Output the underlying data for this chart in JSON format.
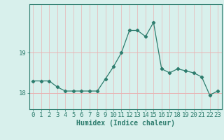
{
  "x": [
    0,
    1,
    2,
    3,
    4,
    5,
    6,
    7,
    8,
    9,
    10,
    11,
    12,
    13,
    14,
    15,
    16,
    17,
    18,
    19,
    20,
    21,
    22,
    23
  ],
  "y": [
    18.3,
    18.3,
    18.3,
    18.15,
    18.05,
    18.05,
    18.05,
    18.05,
    18.05,
    18.35,
    18.65,
    19.0,
    19.55,
    19.55,
    19.4,
    19.75,
    18.6,
    18.5,
    18.6,
    18.55,
    18.5,
    18.4,
    17.95,
    18.05
  ],
  "line_color": "#2e7d6e",
  "marker": "D",
  "marker_size": 2.2,
  "bg_color": "#d8f0ec",
  "hgrid_color": "#e8b4b4",
  "vgrid_color": "#e8b4b4",
  "axis_color": "#2e7d6e",
  "xlabel": "Humidex (Indice chaleur)",
  "xlabel_fontsize": 7,
  "yticks": [
    18,
    19
  ],
  "ylim": [
    17.6,
    20.2
  ],
  "xlim": [
    -0.5,
    23.5
  ],
  "tick_fontsize": 6.5,
  "tick_color": "#2e7d6e",
  "linewidth": 0.9
}
